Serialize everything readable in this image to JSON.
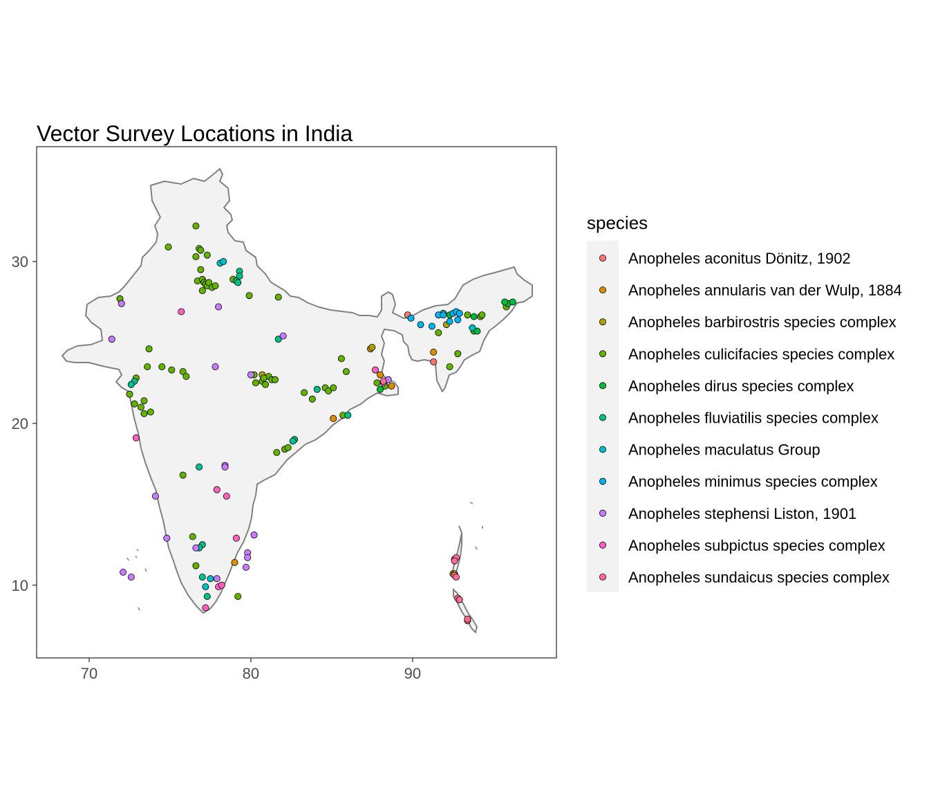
{
  "chart_data": {
    "type": "scatter",
    "title": "Vector Survey Locations in India",
    "xlabel": "",
    "ylabel": "",
    "xlim": [
      66.75,
      98.9
    ],
    "ylim": [
      5.5,
      37.1
    ],
    "x_ticks": [
      70,
      80,
      90
    ],
    "y_ticks": [
      10,
      20,
      30
    ],
    "x_tick_labels": [
      "70",
      "80",
      "90"
    ],
    "y_tick_labels": [
      "10",
      "20",
      "30"
    ],
    "grid": false,
    "legend": {
      "title": "species",
      "position": "right"
    },
    "basemap": "India outline",
    "series": [
      {
        "name": "Anopheles aconitus Dönitz, 1902",
        "color": "#F8766D",
        "points": [
          [
            89.7,
            26.7
          ],
          [
            91.3,
            23.8
          ],
          [
            93.4,
            7.8
          ]
        ]
      },
      {
        "name": "Anopheles annularis van der Wulp, 1884",
        "color": "#DB8E00",
        "points": [
          [
            87.4,
            24.6
          ],
          [
            88.0,
            23.0
          ],
          [
            88.7,
            22.3
          ],
          [
            85.1,
            20.3
          ],
          [
            79.0,
            11.4
          ],
          [
            92.5,
            10.7
          ],
          [
            91.3,
            24.4
          ]
        ]
      },
      {
        "name": "Anopheles barbirostris species complex",
        "color": "#AEA200",
        "points": [
          [
            87.5,
            24.7
          ],
          [
            80.7,
            23.0
          ],
          [
            92.1,
            26.1
          ],
          [
            92.6,
            10.7
          ]
        ]
      },
      {
        "name": "Anopheles culicifacies species complex",
        "color": "#64B200",
        "points": [
          [
            76.6,
            32.2
          ],
          [
            74.9,
            30.9
          ],
          [
            76.8,
            30.8
          ],
          [
            76.9,
            30.7
          ],
          [
            77.3,
            30.4
          ],
          [
            76.6,
            30.3
          ],
          [
            76.9,
            29.5
          ],
          [
            76.7,
            28.8
          ],
          [
            77.0,
            28.9
          ],
          [
            77.1,
            28.7
          ],
          [
            77.2,
            28.6
          ],
          [
            77.3,
            28.5
          ],
          [
            77.4,
            28.7
          ],
          [
            77.6,
            28.4
          ],
          [
            77.8,
            28.5
          ],
          [
            77.0,
            28.2
          ],
          [
            78.9,
            28.9
          ],
          [
            79.9,
            27.9
          ],
          [
            81.7,
            27.8
          ],
          [
            73.7,
            24.6
          ],
          [
            74.5,
            23.5
          ],
          [
            75.1,
            23.3
          ],
          [
            75.8,
            23.2
          ],
          [
            76.0,
            22.9
          ],
          [
            72.9,
            22.8
          ],
          [
            72.5,
            21.8
          ],
          [
            72.8,
            21.2
          ],
          [
            73.2,
            21.0
          ],
          [
            73.4,
            21.4
          ],
          [
            73.4,
            20.6
          ],
          [
            73.8,
            20.7
          ],
          [
            80.2,
            23.0
          ],
          [
            80.3,
            22.5
          ],
          [
            80.7,
            22.6
          ],
          [
            80.9,
            22.4
          ],
          [
            81.1,
            22.9
          ],
          [
            81.3,
            22.7
          ],
          [
            81.5,
            22.7
          ],
          [
            80.8,
            22.8
          ],
          [
            83.3,
            21.9
          ],
          [
            83.8,
            21.5
          ],
          [
            84.6,
            22.2
          ],
          [
            84.8,
            22.0
          ],
          [
            85.1,
            22.2
          ],
          [
            85.6,
            24.0
          ],
          [
            85.7,
            20.5
          ],
          [
            85.9,
            23.2
          ],
          [
            87.8,
            22.5
          ],
          [
            88.3,
            22.3
          ],
          [
            81.6,
            18.2
          ],
          [
            82.1,
            18.4
          ],
          [
            82.3,
            18.5
          ],
          [
            75.8,
            16.8
          ],
          [
            76.4,
            13.0
          ],
          [
            76.6,
            11.2
          ],
          [
            79.2,
            9.3
          ],
          [
            92.8,
            24.3
          ],
          [
            91.6,
            25.6
          ],
          [
            93.4,
            26.7
          ],
          [
            94.2,
            26.6
          ],
          [
            94.3,
            26.7
          ],
          [
            95.8,
            27.2
          ],
          [
            71.9,
            27.7
          ],
          [
            73.6,
            23.5
          ],
          [
            92.3,
            23.5
          ]
        ]
      },
      {
        "name": "Anopheles dirus species complex",
        "color": "#00BA38",
        "points": [
          [
            93.8,
            26.6
          ],
          [
            93.8,
            25.7
          ],
          [
            94.0,
            25.7
          ],
          [
            95.9,
            27.4
          ],
          [
            96.2,
            27.5
          ],
          [
            95.7,
            27.5
          ],
          [
            88.0,
            22.1
          ],
          [
            92.3,
            26.7
          ]
        ]
      },
      {
        "name": "Anopheles fluviatilis species complex",
        "color": "#00C08B",
        "points": [
          [
            79.3,
            29.4
          ],
          [
            79.3,
            29.1
          ],
          [
            79.1,
            28.8
          ],
          [
            79.2,
            28.7
          ],
          [
            72.8,
            22.6
          ],
          [
            72.6,
            22.4
          ],
          [
            81.7,
            25.2
          ],
          [
            82.7,
            19.0
          ],
          [
            82.6,
            18.9
          ],
          [
            76.8,
            17.3
          ],
          [
            77.0,
            12.5
          ],
          [
            76.8,
            12.3
          ],
          [
            77.0,
            10.5
          ],
          [
            77.3,
            9.3
          ],
          [
            84.1,
            22.1
          ],
          [
            86.0,
            20.5
          ]
        ]
      },
      {
        "name": "Anopheles maculatus Group",
        "color": "#00BFC4",
        "points": [
          [
            77.5,
            10.4
          ],
          [
            77.2,
            9.9
          ],
          [
            78.1,
            29.9
          ],
          [
            78.3,
            30.0
          ],
          [
            91.9,
            26.8
          ],
          [
            93.7,
            25.9
          ]
        ]
      },
      {
        "name": "Anopheles minimus species complex",
        "color": "#00B4F0",
        "points": [
          [
            89.9,
            26.5
          ],
          [
            90.5,
            26.1
          ],
          [
            91.2,
            26.0
          ],
          [
            91.6,
            26.7
          ],
          [
            91.9,
            26.7
          ],
          [
            92.3,
            26.3
          ],
          [
            92.5,
            26.8
          ],
          [
            92.8,
            26.4
          ],
          [
            92.7,
            26.9
          ],
          [
            92.9,
            26.8
          ]
        ]
      },
      {
        "name": "Anopheles stephensi Liston, 1901",
        "color": "#C77CFF",
        "points": [
          [
            72.0,
            27.4
          ],
          [
            71.4,
            25.2
          ],
          [
            78.0,
            27.2
          ],
          [
            77.8,
            23.5
          ],
          [
            82.0,
            25.4
          ],
          [
            80.0,
            23.0
          ],
          [
            74.1,
            15.5
          ],
          [
            78.4,
            17.4
          ],
          [
            78.4,
            17.3
          ],
          [
            74.8,
            12.9
          ],
          [
            79.8,
            12.0
          ],
          [
            79.8,
            11.7
          ],
          [
            79.7,
            11.1
          ],
          [
            80.2,
            13.1
          ],
          [
            72.1,
            10.8
          ],
          [
            72.6,
            10.5
          ],
          [
            76.6,
            12.3
          ],
          [
            77.9,
            10.4
          ],
          [
            88.2,
            22.5
          ],
          [
            88.5,
            22.7
          ]
        ]
      },
      {
        "name": "Anopheles subpictus species complex",
        "color": "#FF61C3",
        "points": [
          [
            75.7,
            26.9
          ],
          [
            72.9,
            19.1
          ],
          [
            77.9,
            15.9
          ],
          [
            78.5,
            15.5
          ],
          [
            79.1,
            12.9
          ],
          [
            78.0,
            9.9
          ],
          [
            78.2,
            10.0
          ],
          [
            77.2,
            8.6
          ],
          [
            87.7,
            23.3
          ],
          [
            92.6,
            11.6
          ]
        ]
      },
      {
        "name": "Anopheles sundaicus species complex",
        "color": "#FF6C91",
        "points": [
          [
            92.7,
            11.7
          ],
          [
            92.6,
            11.5
          ],
          [
            92.6,
            10.6
          ],
          [
            92.7,
            10.5
          ],
          [
            92.8,
            9.2
          ],
          [
            92.9,
            9.1
          ],
          [
            93.4,
            7.9
          ],
          [
            88.2,
            22.6
          ]
        ]
      }
    ]
  }
}
